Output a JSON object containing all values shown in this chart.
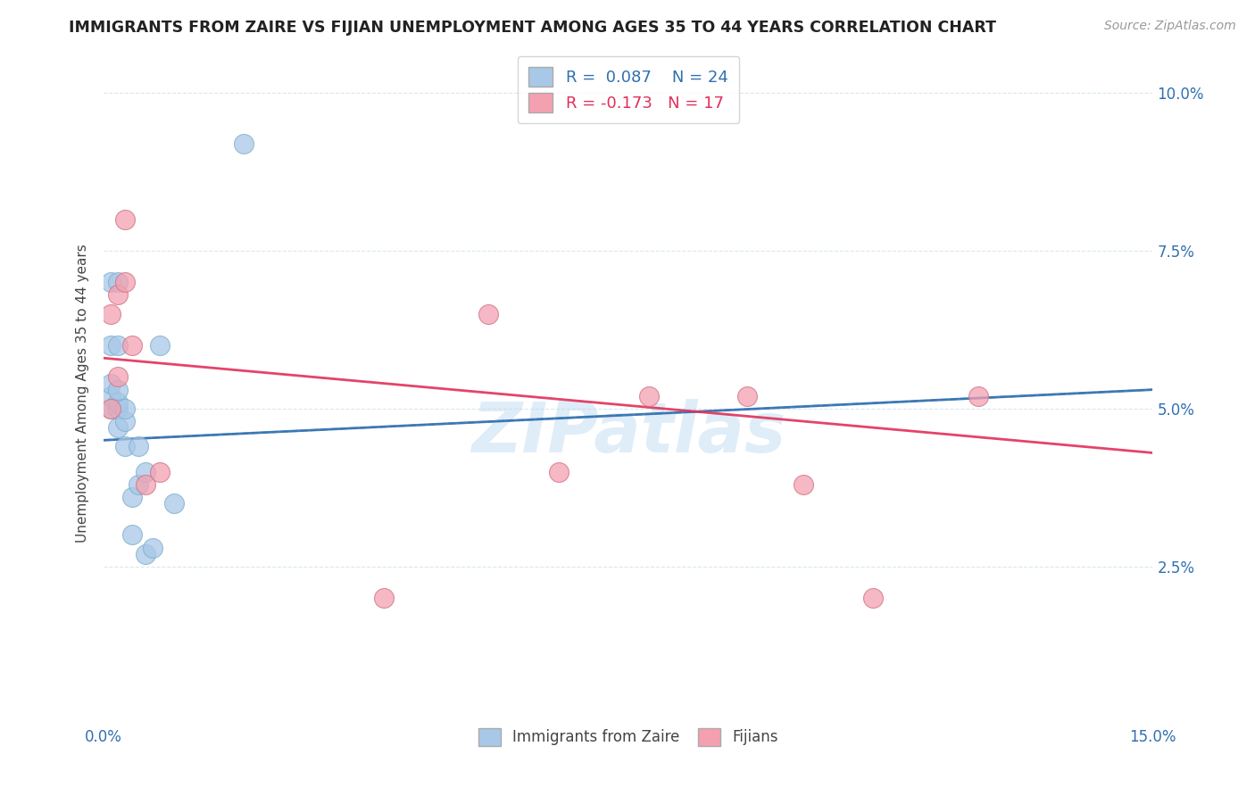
{
  "title": "IMMIGRANTS FROM ZAIRE VS FIJIAN UNEMPLOYMENT AMONG AGES 35 TO 44 YEARS CORRELATION CHART",
  "source_text": "Source: ZipAtlas.com",
  "ylabel": "Unemployment Among Ages 35 to 44 years",
  "xlim": [
    0.0,
    0.15
  ],
  "ylim": [
    0.0,
    0.105
  ],
  "yticks": [
    0.0,
    0.025,
    0.05,
    0.075,
    0.1
  ],
  "ytick_labels": [
    "",
    "2.5%",
    "5.0%",
    "7.5%",
    "10.0%"
  ],
  "background_color": "#ffffff",
  "grid_color": "#d8e8f0",
  "blue_color": "#a8c8e8",
  "pink_color": "#f4a0b0",
  "blue_line_color": "#3070b0",
  "pink_line_color": "#e0305a",
  "legend_r_blue": "0.087",
  "legend_n_blue": "24",
  "legend_r_pink": "-0.173",
  "legend_n_pink": "17",
  "watermark": "ZIPatlas",
  "blue_points_x": [
    0.001,
    0.001,
    0.001,
    0.001,
    0.001,
    0.002,
    0.002,
    0.002,
    0.002,
    0.002,
    0.002,
    0.003,
    0.003,
    0.003,
    0.004,
    0.004,
    0.005,
    0.005,
    0.006,
    0.006,
    0.007,
    0.008,
    0.01,
    0.02
  ],
  "blue_points_y": [
    0.05,
    0.052,
    0.054,
    0.06,
    0.07,
    0.047,
    0.05,
    0.051,
    0.053,
    0.06,
    0.07,
    0.044,
    0.048,
    0.05,
    0.03,
    0.036,
    0.038,
    0.044,
    0.027,
    0.04,
    0.028,
    0.06,
    0.035,
    0.092
  ],
  "pink_points_x": [
    0.001,
    0.001,
    0.002,
    0.002,
    0.003,
    0.003,
    0.004,
    0.006,
    0.008,
    0.04,
    0.055,
    0.065,
    0.078,
    0.092,
    0.1,
    0.11,
    0.125
  ],
  "pink_points_y": [
    0.05,
    0.065,
    0.055,
    0.068,
    0.07,
    0.08,
    0.06,
    0.038,
    0.04,
    0.02,
    0.065,
    0.04,
    0.052,
    0.052,
    0.038,
    0.02,
    0.052
  ],
  "blue_trend_y_start": 0.045,
  "blue_trend_y_end": 0.053,
  "pink_trend_y_start": 0.058,
  "pink_trend_y_end": 0.043
}
